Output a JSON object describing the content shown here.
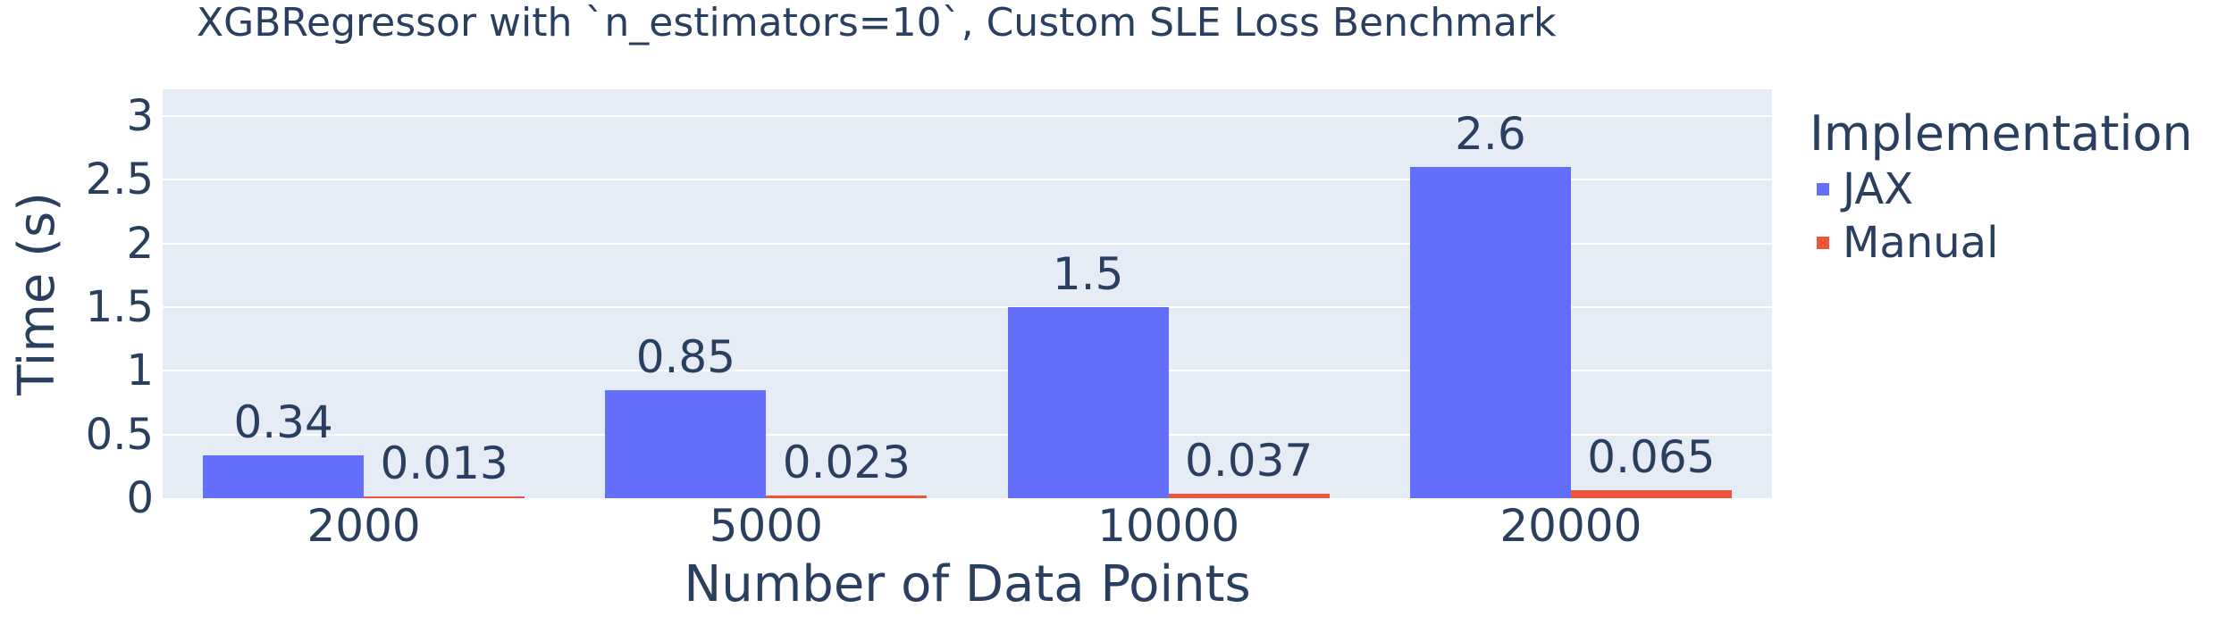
{
  "chart_data": {
    "type": "bar",
    "title": "XGBRegressor with `n_estimators=10`, Custom SLE Loss Benchmark",
    "xlabel": "Number of Data Points",
    "ylabel": "Time (s)",
    "categories": [
      "2000",
      "5000",
      "10000",
      "20000"
    ],
    "series": [
      {
        "name": "JAX",
        "color": "#636EFA",
        "values": [
          0.34,
          0.85,
          1.5,
          2.6
        ],
        "labels": [
          "0.34",
          "0.85",
          "1.5",
          "2.6"
        ]
      },
      {
        "name": "Manual",
        "color": "#EF553B",
        "values": [
          0.013,
          0.023,
          0.037,
          0.065
        ],
        "labels": [
          "0.013",
          "0.023",
          "0.037",
          "0.065"
        ]
      }
    ],
    "yticks": [
      0,
      0.5,
      1,
      1.5,
      2,
      2.5,
      3
    ],
    "ytick_labels": [
      "0",
      "0.5",
      "1",
      "1.5",
      "2",
      "2.5",
      "3"
    ],
    "ylim": [
      0,
      3.21
    ],
    "grid": true,
    "legend": {
      "title": "Implementation",
      "position": "right"
    },
    "colors": {
      "plot_background": "#E5ECF6",
      "gridline": "#FFFFFF",
      "font": "#2A3F5F",
      "page_background": "#FFFFFF"
    }
  }
}
